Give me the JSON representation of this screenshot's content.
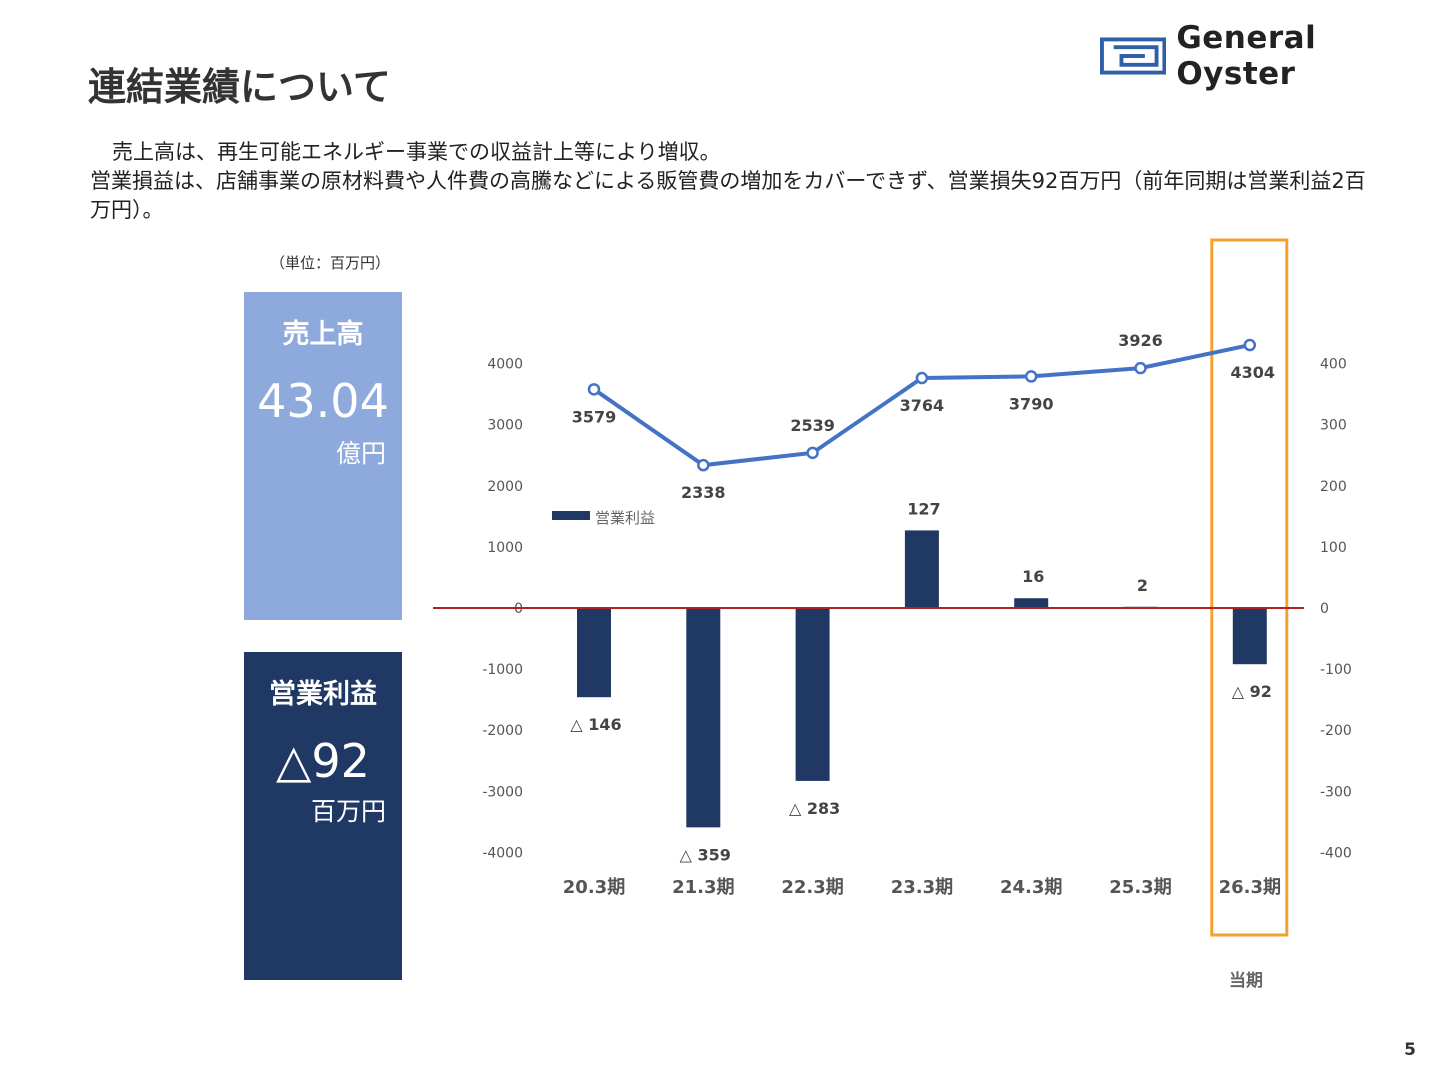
{
  "header": {
    "title": "連結業績について",
    "brand": "General Oyster"
  },
  "summary": {
    "line1": "売上高は、再生可能エネルギー事業での収益計上等により増収。",
    "line2": "営業損益は、店舗事業の原材料費や人件費の高騰などによる販管費の増加をカバーできず、営業損失92百万円（前年同期は営業利益2百万円）。"
  },
  "unit_note": "（単位：百万円）",
  "cards": {
    "sales": {
      "title": "売上高",
      "value": "43.04",
      "unit": "億円",
      "color": "#8ea9db"
    },
    "operating": {
      "title": "営業利益",
      "value": "△92",
      "unit": "百万円",
      "color": "#1f3864"
    }
  },
  "current_period_label": "当期",
  "page_number": "5",
  "chart_data": {
    "type": "bar+line",
    "categories": [
      "20.3期",
      "21.3期",
      "22.3期",
      "23.3期",
      "24.3期",
      "25.3期",
      "26.3期"
    ],
    "series": [
      {
        "type": "line",
        "axis": "left",
        "values": [
          3579,
          2338,
          2539,
          3764,
          3790,
          3926,
          4304
        ],
        "labels": [
          "3579",
          "2338",
          "2539",
          "3764",
          "3790",
          "3926",
          "4304"
        ],
        "color": "#4472c4"
      },
      {
        "type": "bar",
        "name": "営業利益",
        "axis": "right",
        "values": [
          -146,
          -359,
          -283,
          127,
          16,
          2,
          -92
        ],
        "labels": [
          "△ 146",
          "△ 359",
          "△ 283",
          "127",
          "16",
          "2",
          "△ 92"
        ],
        "color": "#1f3864"
      }
    ],
    "left_axis": {
      "ylim": [
        -4000,
        4000
      ],
      "ticks": [
        "4000",
        "3000",
        "2000",
        "1000",
        "0",
        "-1000",
        "-2000",
        "-3000",
        "-4000"
      ]
    },
    "right_axis": {
      "ylim": [
        -400,
        400
      ],
      "ticks": [
        "400",
        "300",
        "200",
        "100",
        "0",
        "-100",
        "-200",
        "-300",
        "-400"
      ]
    },
    "zero_line_color": "#b22222",
    "highlight_category": "26.3期",
    "highlight_color": "#f4a22d",
    "legend": "inside top-left"
  }
}
